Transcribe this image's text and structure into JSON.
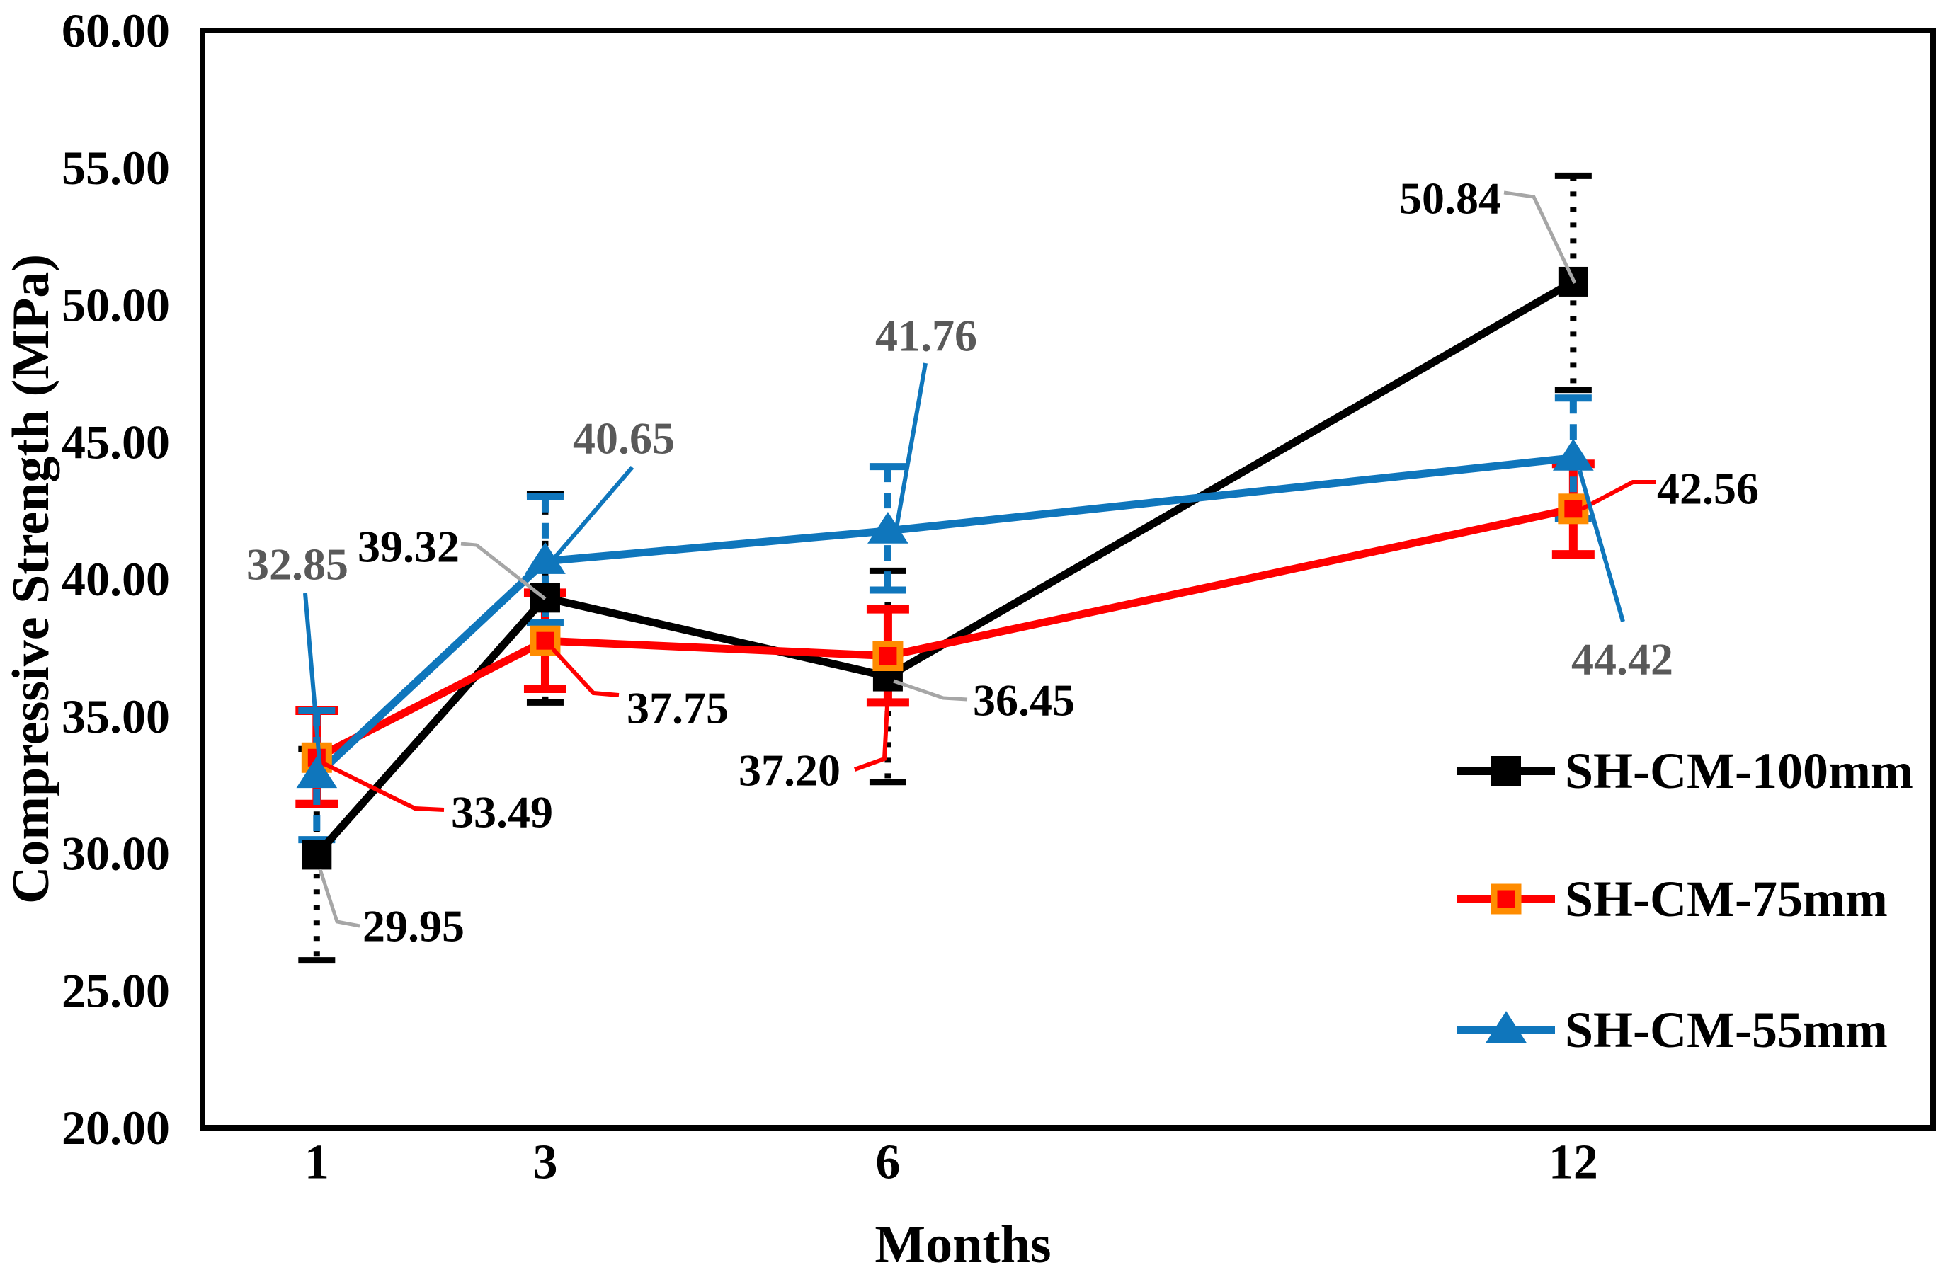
{
  "page": {
    "background": "#ffffff"
  },
  "chart_data": {
    "type": "line",
    "title": "",
    "xlabel": "Months",
    "ylabel": "Compressive Strength (MPa)",
    "x": [
      1,
      3,
      6,
      12
    ],
    "x_tick_labels": [
      "1",
      "3",
      "6",
      "12"
    ],
    "y_tick_labels": [
      "60.00",
      "55.00",
      "50.00",
      "45.00",
      "40.00",
      "35.00",
      "30.00",
      "25.00",
      "20.00"
    ],
    "ylim": [
      20,
      60
    ],
    "xlim": [
      0,
      15.15
    ],
    "grid": false,
    "legend_position": "inside lower right",
    "series": [
      {
        "name": "SH-CM-100mm",
        "color": "#000000",
        "marker": "square",
        "marker_fill": "#000000",
        "marker_edge": "#000000",
        "line_style": "solid",
        "error_bar_style": "dotted",
        "label_color": "#000000",
        "leader_color": "#a6a6a6",
        "values": [
          29.95,
          39.32,
          36.45,
          50.84
        ],
        "point_labels": [
          "29.95",
          "39.32",
          "36.45",
          "50.84"
        ],
        "error_low": [
          26.1,
          35.5,
          32.6,
          46.9
        ],
        "error_high": [
          33.8,
          43.1,
          40.3,
          54.7
        ]
      },
      {
        "name": "SH-CM-75mm",
        "color": "#ff0000",
        "marker": "square",
        "marker_fill": "#ff0000",
        "marker_edge": "#ff8c00",
        "line_style": "solid",
        "error_bar_style": "solid",
        "label_color": "#000000",
        "leader_color": "#ff0000",
        "values": [
          33.49,
          37.75,
          37.2,
          42.56
        ],
        "point_labels": [
          "33.49",
          "37.75",
          "37.20",
          "42.56"
        ],
        "error_low": [
          31.8,
          36.0,
          35.5,
          40.9
        ],
        "error_high": [
          35.2,
          39.5,
          38.9,
          44.2
        ]
      },
      {
        "name": "SH-CM-55mm",
        "color": "#0f76bc",
        "marker": "triangle",
        "marker_fill": "#0f76bc",
        "marker_edge": "#0f76bc",
        "line_style": "solid",
        "error_bar_style": "dashed",
        "label_color": "#595959",
        "leader_color": "#0f76bc",
        "values": [
          32.85,
          40.65,
          41.76,
          44.42
        ],
        "point_labels": [
          "32.85",
          "40.65",
          "41.76",
          "44.42"
        ],
        "error_low": [
          30.5,
          38.4,
          39.6,
          42.2
        ],
        "error_high": [
          35.2,
          43.0,
          44.1,
          46.6
        ]
      }
    ]
  }
}
